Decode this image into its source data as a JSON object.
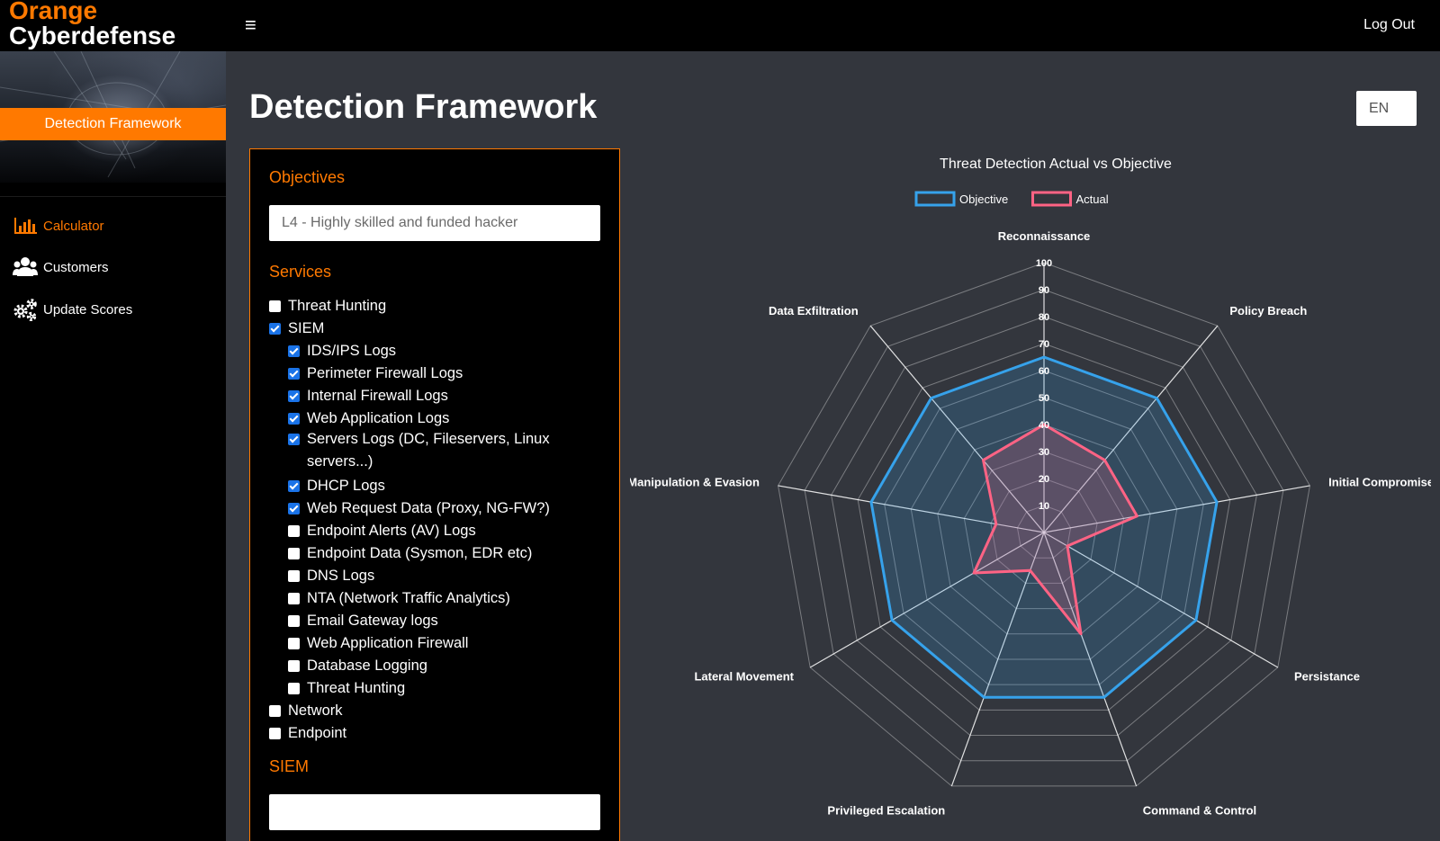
{
  "header": {
    "brand_line1": "Orange",
    "brand_line2": "Cyberdefense",
    "menu_icon": "hamburger-icon",
    "logout_label": "Log Out"
  },
  "sidebar": {
    "hero_tab_label": "Detection Framework",
    "items": [
      {
        "label": "Calculator",
        "icon": "bar-chart-icon",
        "active": true
      },
      {
        "label": "Customers",
        "icon": "users-icon",
        "active": false
      },
      {
        "label": "Update Scores",
        "icon": "gears-icon",
        "active": false
      }
    ]
  },
  "main": {
    "title": "Detection Framework",
    "language": "EN"
  },
  "form": {
    "objectives_label": "Objectives",
    "objective_value": "L4 - Highly skilled and funded hacker",
    "services_label": "Services",
    "services": [
      {
        "label": "Threat Hunting",
        "checked": false,
        "level": 0
      },
      {
        "label": "SIEM",
        "checked": true,
        "level": 0
      },
      {
        "label": "IDS/IPS Logs",
        "checked": true,
        "level": 1
      },
      {
        "label": "Perimeter Firewall Logs",
        "checked": true,
        "level": 1
      },
      {
        "label": "Internal Firewall Logs",
        "checked": true,
        "level": 1
      },
      {
        "label": "Web Application Logs",
        "checked": true,
        "level": 1
      },
      {
        "label": "Servers Logs (DC, Fileservers, Linux servers...)",
        "checked": true,
        "level": 1
      },
      {
        "label": "DHCP Logs",
        "checked": true,
        "level": 1
      },
      {
        "label": "Web Request Data (Proxy, NG-FW?)",
        "checked": true,
        "level": 1
      },
      {
        "label": "Endpoint Alerts (AV) Logs",
        "checked": false,
        "level": 1
      },
      {
        "label": "Endpoint Data (Sysmon, EDR etc)",
        "checked": false,
        "level": 1
      },
      {
        "label": "DNS Logs",
        "checked": false,
        "level": 1
      },
      {
        "label": "NTA (Network Traffic Analytics)",
        "checked": false,
        "level": 1
      },
      {
        "label": "Email Gateway logs",
        "checked": false,
        "level": 1
      },
      {
        "label": "Web Application Firewall",
        "checked": false,
        "level": 1
      },
      {
        "label": "Database Logging",
        "checked": false,
        "level": 1
      },
      {
        "label": "Threat Hunting",
        "checked": false,
        "level": 1
      },
      {
        "label": "Network",
        "checked": false,
        "level": 0
      },
      {
        "label": "Endpoint",
        "checked": false,
        "level": 0
      }
    ],
    "siem_label": "SIEM",
    "siem_value": ""
  },
  "chart_data": {
    "type": "radar",
    "title": "Threat Detection Actual vs Objective",
    "axes": [
      "Reconnaissance",
      "Policy Breach",
      "Initial Compromise",
      "Persistance",
      "Command & Control",
      "Privileged Escalation",
      "Lateral Movement",
      "Manipulation & Evasion",
      "Data Exfiltration"
    ],
    "range": [
      0,
      100
    ],
    "ticks": [
      10,
      20,
      30,
      40,
      50,
      60,
      70,
      80,
      90,
      100
    ],
    "legend_position": "top",
    "series": [
      {
        "name": "Objective",
        "color": "#36a2eb",
        "values": [
          65,
          65,
          65,
          65,
          65,
          65,
          65,
          65,
          65
        ]
      },
      {
        "name": "Actual",
        "color": "#ff6384",
        "values": [
          40,
          35,
          35,
          10,
          40,
          15,
          30,
          18,
          35
        ]
      }
    ]
  }
}
